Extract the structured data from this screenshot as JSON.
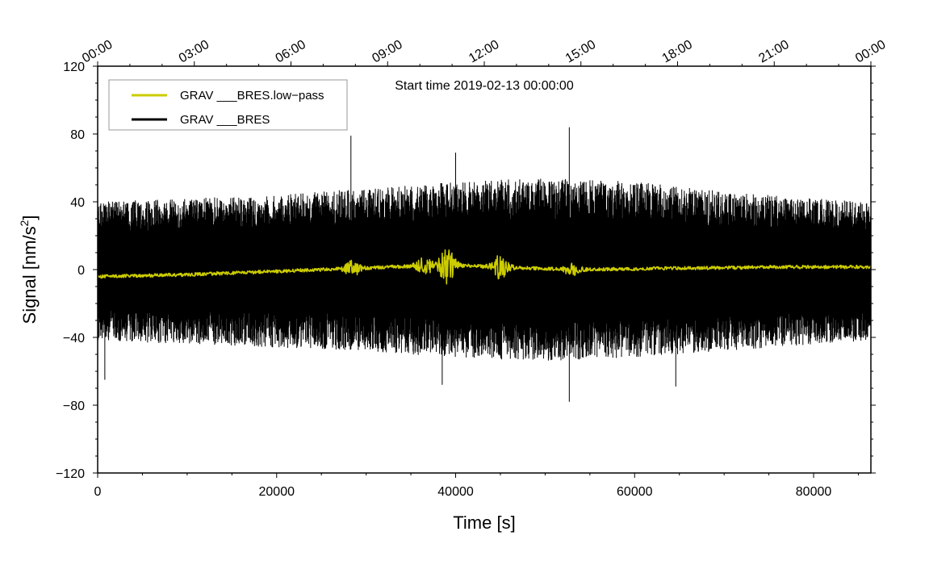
{
  "chart_data": {
    "type": "line",
    "annotation": "Start time 2019-02-13 00:00:00",
    "xlabel": "Time [s]",
    "ylabel_main": "Signal [nm/s",
    "ylabel_sup": "2",
    "ylabel_close": "]",
    "xlim": [
      0,
      86400
    ],
    "ylim": [
      -120,
      120
    ],
    "x_ticks": [
      0,
      20000,
      40000,
      60000,
      80000
    ],
    "x_tick_labels": [
      "0",
      "20000",
      "40000",
      "60000",
      "80000"
    ],
    "y_ticks": [
      -120,
      -80,
      -40,
      0,
      40,
      80,
      120
    ],
    "y_tick_labels": [
      "−120",
      "−80",
      "−40",
      "0",
      "40",
      "80",
      "120"
    ],
    "top_ticks_seconds": [
      0,
      10800,
      21600,
      32400,
      43200,
      54000,
      64800,
      75600,
      86400
    ],
    "top_tick_labels": [
      "00:00",
      "03:00",
      "06:00",
      "09:00",
      "12:00",
      "15:00",
      "18:00",
      "21:00",
      "00:00"
    ],
    "legend": [
      {
        "name": "GRAV ___BRES.low−pass",
        "color": "#cccc00"
      },
      {
        "name": "GRAV ___BRES",
        "color": "#000000"
      }
    ],
    "series": [
      {
        "name": "GRAV ___BRES",
        "color": "#000000",
        "style": "dense noise",
        "envelope": {
          "x": [
            0,
            10000,
            20000,
            30000,
            40000,
            50000,
            60000,
            70000,
            80000,
            86400
          ],
          "upper": [
            40,
            42,
            44,
            48,
            52,
            54,
            52,
            46,
            42,
            40
          ],
          "lower": [
            -42,
            -44,
            -46,
            -48,
            -52,
            -54,
            -52,
            -48,
            -44,
            -42
          ]
        },
        "spikes": [
          {
            "x": 28300,
            "y": 79
          },
          {
            "x": 52700,
            "y": 84
          },
          {
            "x": 52700,
            "y": -78
          },
          {
            "x": 800,
            "y": -65
          },
          {
            "x": 38500,
            "y": -68
          },
          {
            "x": 64600,
            "y": -69
          },
          {
            "x": 40000,
            "y": 69
          }
        ]
      },
      {
        "name": "GRAV ___BRES.low−pass",
        "color": "#cccc00",
        "style": "filtered",
        "x": [
          0,
          5000,
          10000,
          15000,
          20000,
          25000,
          30000,
          35000,
          40000,
          45000,
          50000,
          55000,
          60000,
          65000,
          70000,
          75000,
          80000,
          86400
        ],
        "y": [
          -4,
          -3.5,
          -3,
          -2,
          -1,
          0,
          1,
          2,
          2.5,
          1.5,
          0.5,
          0,
          0.5,
          0.8,
          1,
          1.5,
          1.5,
          1.5
        ],
        "bursts": [
          {
            "x": 28500,
            "amp": 4
          },
          {
            "x": 36500,
            "amp": 5
          },
          {
            "x": 39000,
            "amp": 10
          },
          {
            "x": 45000,
            "amp": 7
          },
          {
            "x": 53000,
            "amp": 3
          }
        ]
      }
    ]
  }
}
